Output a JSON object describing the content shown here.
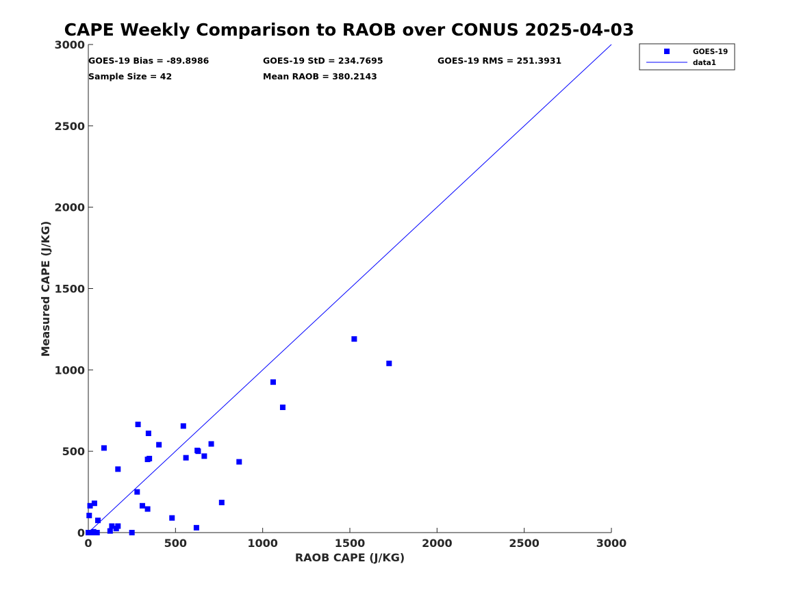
{
  "chart_data": {
    "type": "scatter",
    "title": "CAPE Weekly Comparison to RAOB over CONUS 2025-04-03",
    "xlabel": "RAOB CAPE (J/KG)",
    "ylabel": "Measured CAPE (J/KG)",
    "xlim": [
      0,
      3000
    ],
    "ylim": [
      0,
      3000
    ],
    "xticks": [
      0,
      500,
      1000,
      1500,
      2000,
      2500,
      3000
    ],
    "yticks": [
      0,
      500,
      1000,
      1500,
      2000,
      2500,
      3000
    ],
    "xtick_labels": [
      "0",
      "500",
      "1000",
      "1500",
      "2000",
      "2500",
      "3000"
    ],
    "ytick_labels": [
      "0",
      "500",
      "1000",
      "1500",
      "2000",
      "2500",
      "3000"
    ],
    "grid": false,
    "legend_position": "outside top-right",
    "stats": {
      "bias": "GOES-19 Bias = -89.8986",
      "std": "GOES-19 StD = 234.7695",
      "rms": "GOES-19 RMS = 251.3931",
      "sample": "Sample Size = 42",
      "mean": "Mean RAOB = 380.2143"
    },
    "series": [
      {
        "name": "GOES-19",
        "kind": "scatter",
        "marker": "square",
        "color": "#0000ff",
        "x": [
          0,
          5,
          15,
          25,
          40,
          50,
          5,
          10,
          35,
          55,
          90,
          125,
          135,
          160,
          170,
          170,
          250,
          280,
          285,
          310,
          340,
          340,
          345,
          350,
          405,
          480,
          545,
          560,
          620,
          625,
          630,
          665,
          705,
          765,
          865,
          1060,
          1115,
          1525,
          1725,
          10,
          30,
          45
        ],
        "y": [
          0,
          0,
          0,
          0,
          0,
          0,
          105,
          165,
          180,
          75,
          520,
          10,
          40,
          25,
          40,
          390,
          0,
          250,
          665,
          165,
          145,
          450,
          610,
          455,
          540,
          90,
          655,
          460,
          30,
          505,
          500,
          470,
          545,
          185,
          435,
          925,
          770,
          1190,
          1040,
          0,
          5,
          0
        ]
      },
      {
        "name": "data1",
        "kind": "line",
        "color": "#0000ff",
        "x": [
          0,
          3000
        ],
        "y": [
          0,
          3000
        ]
      }
    ]
  }
}
